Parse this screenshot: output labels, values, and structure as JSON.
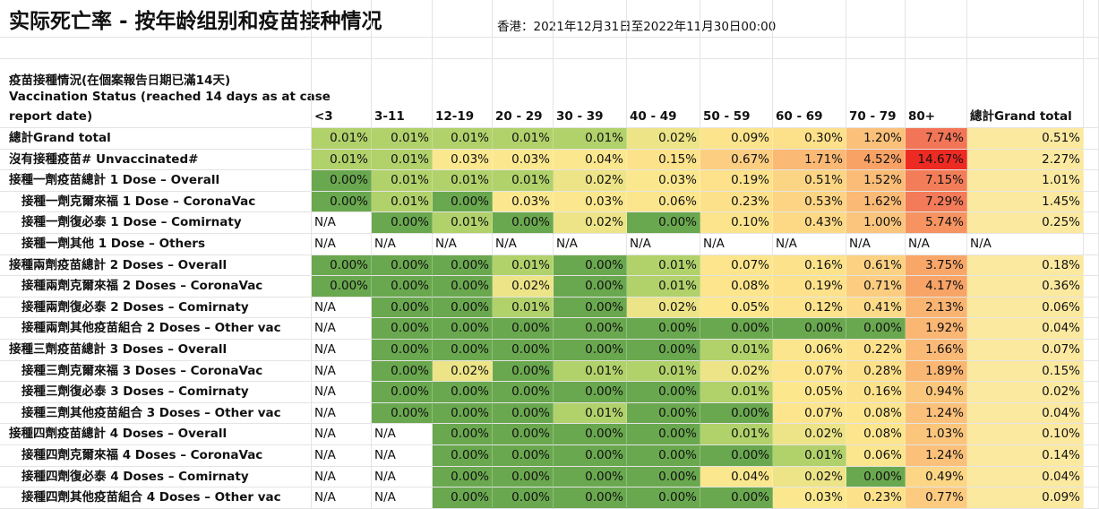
{
  "header": {
    "title": "实际死亡率 - 按年龄组别和疫苗接种情况",
    "period": "香港：2021年12月31日至2022年11月30日00:00"
  },
  "table": {
    "corner": [
      "疫苗接種情況(在個案報告日期已滿14天)",
      "Vaccination Status (reached 14 days as at case",
      "report date)"
    ],
    "columns": [
      "<3",
      "3-11",
      "12-19",
      "20 - 29",
      "30 - 39",
      "40 - 49",
      "50 - 59",
      "60 - 69",
      "70 - 79",
      "80+",
      "總計Grand total"
    ],
    "rows": [
      {
        "label": "總計Grand total",
        "cells": [
          "0.01%",
          "0.01%",
          "0.01%",
          "0.01%",
          "0.01%",
          "0.02%",
          "0.09%",
          "0.30%",
          "1.20%",
          "7.74%",
          "0.51%"
        ]
      },
      {
        "label": "沒有接種疫苗# Unvaccinated#",
        "cells": [
          "0.01%",
          "0.01%",
          "0.03%",
          "0.03%",
          "0.04%",
          "0.15%",
          "0.67%",
          "1.71%",
          "4.52%",
          "14.67%",
          "2.27%"
        ]
      },
      {
        "label": "接種一劑疫苗總計 1 Dose – Overall",
        "cells": [
          "0.00%",
          "0.01%",
          "0.01%",
          "0.01%",
          "0.02%",
          "0.03%",
          "0.19%",
          "0.51%",
          "1.52%",
          "7.15%",
          "1.01%"
        ]
      },
      {
        "label": "接種一劑克爾來福 1 Dose – CoronaVac",
        "cells": [
          "0.00%",
          "0.01%",
          "0.00%",
          "0.03%",
          "0.03%",
          "0.06%",
          "0.23%",
          "0.53%",
          "1.62%",
          "7.29%",
          "1.45%"
        ]
      },
      {
        "label": "接種一劑復必泰 1 Dose – Comirnaty",
        "cells": [
          "N/A",
          "0.00%",
          "0.01%",
          "0.00%",
          "0.02%",
          "0.00%",
          "0.10%",
          "0.43%",
          "1.00%",
          "5.74%",
          "0.25%"
        ]
      },
      {
        "label": "接種一劑其他 1 Dose – Others",
        "cells": [
          "N/A",
          "N/A",
          "N/A",
          "N/A",
          "N/A",
          "N/A",
          "N/A",
          "N/A",
          "N/A",
          "N/A",
          "N/A"
        ]
      },
      {
        "label": "接種兩劑疫苗總計 2 Doses – Overall",
        "cells": [
          "0.00%",
          "0.00%",
          "0.00%",
          "0.01%",
          "0.00%",
          "0.01%",
          "0.07%",
          "0.16%",
          "0.61%",
          "3.75%",
          "0.18%"
        ]
      },
      {
        "label": "接種兩劑克爾來福 2 Doses – CoronaVac",
        "cells": [
          "0.00%",
          "0.00%",
          "0.00%",
          "0.02%",
          "0.00%",
          "0.01%",
          "0.08%",
          "0.19%",
          "0.71%",
          "4.17%",
          "0.36%"
        ]
      },
      {
        "label": "接種兩劑復必泰 2 Doses – Comirnaty",
        "cells": [
          "N/A",
          "0.00%",
          "0.00%",
          "0.01%",
          "0.00%",
          "0.02%",
          "0.05%",
          "0.12%",
          "0.41%",
          "2.13%",
          "0.06%"
        ]
      },
      {
        "label": "接種兩劑其他疫苗組合 2 Doses – Other vac",
        "cells": [
          "N/A",
          "0.00%",
          "0.00%",
          "0.00%",
          "0.00%",
          "0.00%",
          "0.00%",
          "0.00%",
          "0.00%",
          "1.92%",
          "0.04%"
        ]
      },
      {
        "label": "接種三劑疫苗總計 3 Doses – Overall",
        "cells": [
          "N/A",
          "0.00%",
          "0.00%",
          "0.00%",
          "0.00%",
          "0.00%",
          "0.01%",
          "0.06%",
          "0.22%",
          "1.66%",
          "0.07%"
        ]
      },
      {
        "label": "接種三劑克爾來福 3 Doses – CoronaVac",
        "cells": [
          "N/A",
          "0.00%",
          "0.02%",
          "0.00%",
          "0.01%",
          "0.01%",
          "0.02%",
          "0.07%",
          "0.28%",
          "1.89%",
          "0.15%"
        ]
      },
      {
        "label": "接種三劑復必泰 3 Doses – Comirnaty",
        "cells": [
          "N/A",
          "0.00%",
          "0.00%",
          "0.00%",
          "0.00%",
          "0.00%",
          "0.01%",
          "0.05%",
          "0.16%",
          "0.94%",
          "0.02%"
        ]
      },
      {
        "label": "接種三劑其他疫苗組合 3 Doses – Other vac",
        "cells": [
          "N/A",
          "0.00%",
          "0.00%",
          "0.00%",
          "0.01%",
          "0.00%",
          "0.00%",
          "0.07%",
          "0.08%",
          "1.24%",
          "0.04%"
        ]
      },
      {
        "label": "接種四劑疫苗總計 4 Doses – Overall",
        "cells": [
          "N/A",
          "N/A",
          "0.00%",
          "0.00%",
          "0.00%",
          "0.00%",
          "0.01%",
          "0.02%",
          "0.08%",
          "1.03%",
          "0.10%"
        ]
      },
      {
        "label": "接種四劑克爾來福 4 Doses – CoronaVac",
        "cells": [
          "N/A",
          "N/A",
          "0.00%",
          "0.00%",
          "0.00%",
          "0.00%",
          "0.00%",
          "0.01%",
          "0.06%",
          "1.24%",
          "0.14%"
        ]
      },
      {
        "label": "接種四劑復必泰 4 Doses – Comirnaty",
        "cells": [
          "N/A",
          "N/A",
          "0.00%",
          "0.00%",
          "0.00%",
          "0.00%",
          "0.04%",
          "0.02%",
          "0.00%",
          "0.49%",
          "0.04%"
        ]
      },
      {
        "label": "接種四劑其他疫苗組合 4 Doses – Other vac",
        "cells": [
          "N/A",
          "N/A",
          "0.00%",
          "0.00%",
          "0.00%",
          "0.00%",
          "0.00%",
          "0.03%",
          "0.23%",
          "0.77%",
          "0.09%"
        ]
      }
    ]
  }
}
